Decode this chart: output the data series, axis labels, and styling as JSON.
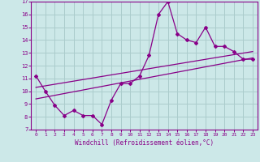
{
  "title": "",
  "xlabel": "Windchill (Refroidissement éolien,°C)",
  "ylabel": "",
  "bg_color": "#cce8e8",
  "grid_color": "#aacccc",
  "line_color": "#880088",
  "xlim": [
    -0.5,
    23.5
  ],
  "ylim": [
    7,
    17
  ],
  "xticks": [
    0,
    1,
    2,
    3,
    4,
    5,
    6,
    7,
    8,
    9,
    10,
    11,
    12,
    13,
    14,
    15,
    16,
    17,
    18,
    19,
    20,
    21,
    22,
    23
  ],
  "yticks": [
    7,
    8,
    9,
    10,
    11,
    12,
    13,
    14,
    15,
    16,
    17
  ],
  "curve1_x": [
    0,
    1,
    2,
    3,
    4,
    5,
    6,
    7,
    8,
    9,
    10,
    11,
    12,
    13,
    14,
    15,
    16,
    17,
    18,
    19,
    20,
    21,
    22,
    23
  ],
  "curve1_y": [
    11.2,
    10.0,
    8.9,
    8.1,
    8.5,
    8.1,
    8.1,
    7.4,
    9.3,
    10.6,
    10.6,
    11.2,
    12.8,
    16.0,
    17.0,
    14.5,
    14.0,
    13.8,
    15.0,
    13.5,
    13.5,
    13.1,
    12.5,
    12.5
  ],
  "line1_x": [
    0,
    23
  ],
  "line1_y": [
    10.3,
    13.1
  ],
  "line2_x": [
    0,
    23
  ],
  "line2_y": [
    9.4,
    12.6
  ]
}
